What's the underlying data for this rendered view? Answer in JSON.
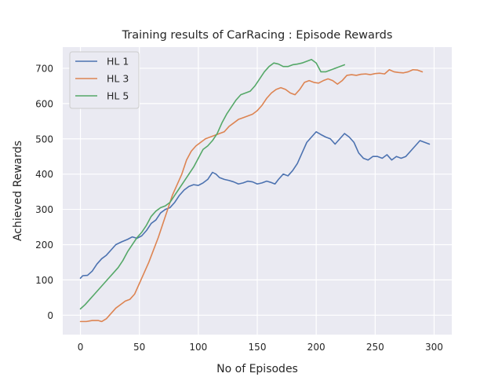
{
  "chart_data": {
    "type": "line",
    "title": "Training results of CarRacing : Episode Rewards",
    "xlabel": "No of Episodes",
    "ylabel": "Achieved Rewards",
    "xlim": [
      -15,
      315
    ],
    "ylim": [
      -55,
      760
    ],
    "xticks": [
      0,
      50,
      100,
      150,
      200,
      250,
      300
    ],
    "yticks": [
      0,
      100,
      200,
      300,
      400,
      500,
      600,
      700
    ],
    "grid": true,
    "legend_position": "top-left",
    "background": "#eaeaf2",
    "series": [
      {
        "name": "HL 1",
        "color": "#4c72b0",
        "points": [
          [
            0,
            105
          ],
          [
            2,
            112
          ],
          [
            6,
            113
          ],
          [
            10,
            125
          ],
          [
            14,
            145
          ],
          [
            18,
            160
          ],
          [
            22,
            170
          ],
          [
            26,
            185
          ],
          [
            30,
            200
          ],
          [
            35,
            208
          ],
          [
            40,
            215
          ],
          [
            44,
            222
          ],
          [
            48,
            218
          ],
          [
            52,
            225
          ],
          [
            56,
            240
          ],
          [
            60,
            260
          ],
          [
            64,
            270
          ],
          [
            68,
            290
          ],
          [
            72,
            300
          ],
          [
            76,
            305
          ],
          [
            80,
            320
          ],
          [
            84,
            340
          ],
          [
            88,
            355
          ],
          [
            92,
            365
          ],
          [
            96,
            370
          ],
          [
            100,
            368
          ],
          [
            104,
            375
          ],
          [
            108,
            385
          ],
          [
            112,
            405
          ],
          [
            115,
            400
          ],
          [
            118,
            390
          ],
          [
            122,
            385
          ],
          [
            126,
            382
          ],
          [
            130,
            378
          ],
          [
            134,
            372
          ],
          [
            138,
            375
          ],
          [
            142,
            380
          ],
          [
            146,
            378
          ],
          [
            150,
            372
          ],
          [
            154,
            375
          ],
          [
            158,
            380
          ],
          [
            162,
            376
          ],
          [
            165,
            372
          ],
          [
            168,
            385
          ],
          [
            172,
            400
          ],
          [
            176,
            395
          ],
          [
            180,
            410
          ],
          [
            184,
            430
          ],
          [
            188,
            460
          ],
          [
            192,
            490
          ],
          [
            196,
            505
          ],
          [
            200,
            520
          ],
          [
            204,
            512
          ],
          [
            208,
            505
          ],
          [
            212,
            500
          ],
          [
            216,
            485
          ],
          [
            220,
            500
          ],
          [
            224,
            515
          ],
          [
            228,
            505
          ],
          [
            232,
            490
          ],
          [
            236,
            460
          ],
          [
            240,
            445
          ],
          [
            244,
            440
          ],
          [
            248,
            450
          ],
          [
            252,
            450
          ],
          [
            256,
            445
          ],
          [
            260,
            455
          ],
          [
            264,
            440
          ],
          [
            268,
            450
          ],
          [
            272,
            445
          ],
          [
            276,
            450
          ],
          [
            280,
            465
          ],
          [
            284,
            480
          ],
          [
            288,
            495
          ],
          [
            292,
            490
          ],
          [
            296,
            485
          ]
        ]
      },
      {
        "name": "HL 3",
        "color": "#dd8452",
        "points": [
          [
            0,
            -18
          ],
          [
            5,
            -18
          ],
          [
            10,
            -15
          ],
          [
            15,
            -15
          ],
          [
            18,
            -18
          ],
          [
            22,
            -10
          ],
          [
            26,
            5
          ],
          [
            30,
            20
          ],
          [
            34,
            30
          ],
          [
            38,
            40
          ],
          [
            42,
            45
          ],
          [
            46,
            60
          ],
          [
            50,
            90
          ],
          [
            54,
            120
          ],
          [
            58,
            150
          ],
          [
            62,
            185
          ],
          [
            66,
            220
          ],
          [
            70,
            260
          ],
          [
            74,
            300
          ],
          [
            78,
            340
          ],
          [
            82,
            370
          ],
          [
            86,
            400
          ],
          [
            90,
            440
          ],
          [
            94,
            465
          ],
          [
            98,
            480
          ],
          [
            102,
            490
          ],
          [
            106,
            500
          ],
          [
            110,
            505
          ],
          [
            114,
            510
          ],
          [
            118,
            515
          ],
          [
            122,
            520
          ],
          [
            126,
            535
          ],
          [
            130,
            545
          ],
          [
            134,
            555
          ],
          [
            138,
            560
          ],
          [
            142,
            565
          ],
          [
            146,
            570
          ],
          [
            150,
            580
          ],
          [
            154,
            595
          ],
          [
            158,
            615
          ],
          [
            162,
            630
          ],
          [
            166,
            640
          ],
          [
            170,
            645
          ],
          [
            174,
            640
          ],
          [
            178,
            630
          ],
          [
            182,
            625
          ],
          [
            186,
            640
          ],
          [
            190,
            660
          ],
          [
            194,
            665
          ],
          [
            198,
            660
          ],
          [
            202,
            658
          ],
          [
            206,
            665
          ],
          [
            210,
            670
          ],
          [
            214,
            665
          ],
          [
            218,
            655
          ],
          [
            222,
            665
          ],
          [
            226,
            680
          ],
          [
            230,
            682
          ],
          [
            234,
            680
          ],
          [
            238,
            683
          ],
          [
            242,
            684
          ],
          [
            246,
            682
          ],
          [
            250,
            685
          ],
          [
            254,
            686
          ],
          [
            258,
            684
          ],
          [
            262,
            696
          ],
          [
            266,
            690
          ],
          [
            270,
            688
          ],
          [
            274,
            687
          ],
          [
            278,
            690
          ],
          [
            282,
            696
          ],
          [
            286,
            695
          ],
          [
            290,
            690
          ]
        ]
      },
      {
        "name": "HL 5",
        "color": "#55a868",
        "points": [
          [
            0,
            18
          ],
          [
            4,
            30
          ],
          [
            8,
            45
          ],
          [
            12,
            60
          ],
          [
            16,
            75
          ],
          [
            20,
            90
          ],
          [
            24,
            105
          ],
          [
            28,
            120
          ],
          [
            32,
            135
          ],
          [
            36,
            155
          ],
          [
            40,
            180
          ],
          [
            44,
            200
          ],
          [
            48,
            220
          ],
          [
            52,
            235
          ],
          [
            56,
            255
          ],
          [
            60,
            280
          ],
          [
            64,
            295
          ],
          [
            68,
            305
          ],
          [
            72,
            310
          ],
          [
            76,
            320
          ],
          [
            80,
            340
          ],
          [
            84,
            360
          ],
          [
            88,
            380
          ],
          [
            92,
            400
          ],
          [
            96,
            420
          ],
          [
            100,
            445
          ],
          [
            104,
            470
          ],
          [
            108,
            480
          ],
          [
            112,
            495
          ],
          [
            116,
            515
          ],
          [
            120,
            545
          ],
          [
            124,
            570
          ],
          [
            128,
            590
          ],
          [
            132,
            610
          ],
          [
            136,
            625
          ],
          [
            140,
            630
          ],
          [
            144,
            635
          ],
          [
            148,
            650
          ],
          [
            152,
            670
          ],
          [
            156,
            690
          ],
          [
            160,
            705
          ],
          [
            164,
            715
          ],
          [
            168,
            712
          ],
          [
            172,
            705
          ],
          [
            176,
            705
          ],
          [
            180,
            710
          ],
          [
            184,
            712
          ],
          [
            188,
            715
          ],
          [
            192,
            720
          ],
          [
            196,
            725
          ],
          [
            200,
            715
          ],
          [
            204,
            690
          ],
          [
            208,
            690
          ],
          [
            212,
            695
          ],
          [
            216,
            700
          ],
          [
            220,
            705
          ],
          [
            224,
            710
          ]
        ]
      }
    ]
  }
}
